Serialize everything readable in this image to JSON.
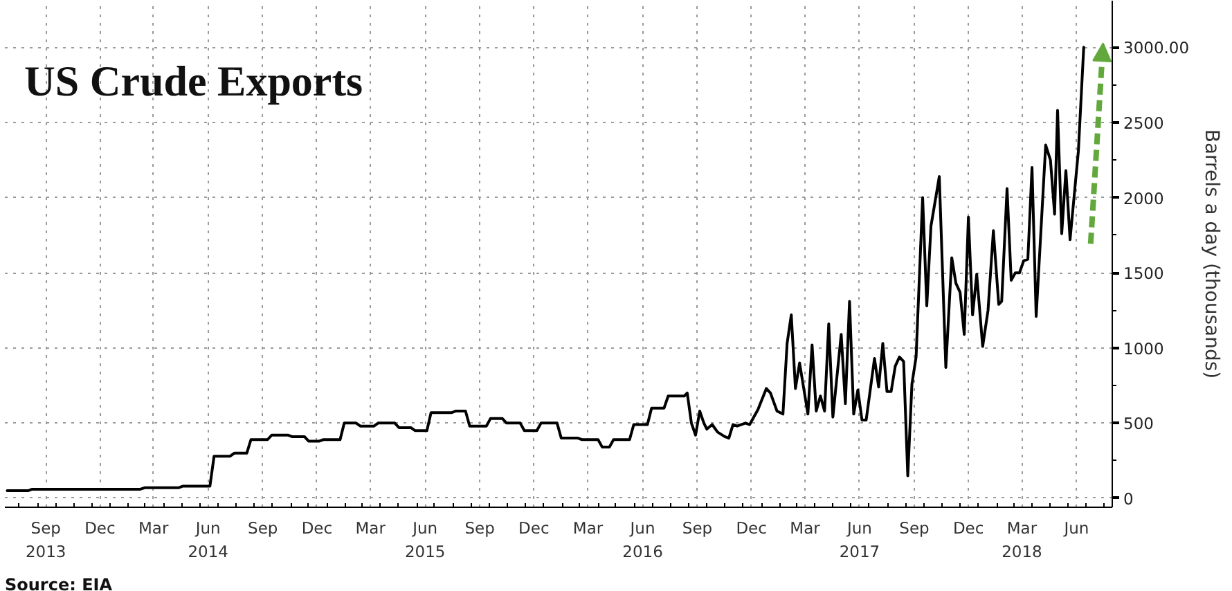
{
  "chart_data": {
    "type": "line",
    "title": "US Crude Exports",
    "ylabel": "Barrels a day (thousands)",
    "annotations": [
      "Source: EIA"
    ],
    "x": [
      "2013-07-12",
      "2013-08-16",
      "2013-08-23",
      "2014-02-21",
      "2014-02-28",
      "2014-04-26",
      "2014-05-03",
      "2014-06-18",
      "2014-06-25",
      "2014-07-22",
      "2014-07-29",
      "2014-08-19",
      "2014-08-26",
      "2014-09-23",
      "2014-09-30",
      "2014-10-27",
      "2014-11-03",
      "2014-11-24",
      "2014-12-01",
      "2014-12-19",
      "2014-12-26",
      "2015-01-23",
      "2015-01-30",
      "2015-02-19",
      "2015-02-26",
      "2015-03-21",
      "2015-03-28",
      "2015-04-25",
      "2015-05-02",
      "2015-05-22",
      "2015-05-29",
      "2015-06-18",
      "2015-06-25",
      "2015-07-30",
      "2015-08-06",
      "2015-08-22",
      "2015-08-29",
      "2015-09-26",
      "2015-10-03",
      "2015-10-23",
      "2015-10-30",
      "2015-11-22",
      "2015-11-29",
      "2015-12-20",
      "2015-12-27",
      "2016-01-23",
      "2016-01-30",
      "2016-02-27",
      "2016-03-05",
      "2016-04-01",
      "2016-04-08",
      "2016-04-20",
      "2016-04-27",
      "2016-05-24",
      "2016-05-31",
      "2016-06-23",
      "2016-06-30",
      "2016-07-21",
      "2016-07-28",
      "2016-08-24",
      "2016-08-29",
      "2016-09-05",
      "2016-09-12",
      "2016-09-19",
      "2016-09-26",
      "2016-10-01",
      "2016-10-10",
      "2016-10-19",
      "2016-10-31",
      "2016-11-07",
      "2016-11-14",
      "2016-11-21",
      "2016-12-05",
      "2016-12-12",
      "2016-12-26",
      "2017-01-09",
      "2017-01-16",
      "2017-01-27",
      "2017-02-06",
      "2017-02-13",
      "2017-02-20",
      "2017-02-27",
      "2017-03-06",
      "2017-03-20",
      "2017-03-27",
      "2017-04-03",
      "2017-04-10",
      "2017-04-17",
      "2017-04-24",
      "2017-05-01",
      "2017-05-15",
      "2017-05-22",
      "2017-05-29",
      "2017-06-05",
      "2017-06-12",
      "2017-06-19",
      "2017-06-26",
      "2017-07-10",
      "2017-07-17",
      "2017-07-24",
      "2017-07-31",
      "2017-08-07",
      "2017-08-14",
      "2017-08-21",
      "2017-08-28",
      "2017-09-04",
      "2017-09-11",
      "2017-09-18",
      "2017-09-29",
      "2017-10-06",
      "2017-10-13",
      "2017-10-27",
      "2017-11-07",
      "2017-11-17",
      "2017-11-24",
      "2017-12-01",
      "2017-12-08",
      "2017-12-15",
      "2017-12-22",
      "2017-12-29",
      "2018-01-08",
      "2018-01-17",
      "2018-01-26",
      "2018-02-04",
      "2018-02-09",
      "2018-02-18",
      "2018-02-25",
      "2018-03-04",
      "2018-03-11",
      "2018-03-18",
      "2018-03-25",
      "2018-04-01",
      "2018-04-08",
      "2018-04-24",
      "2018-05-02",
      "2018-05-09",
      "2018-05-14",
      "2018-05-21",
      "2018-05-28",
      "2018-06-04",
      "2018-06-18",
      "2018-06-27"
    ],
    "series": [
      {
        "color": "#000000",
        "values": [
          50,
          50,
          60,
          60,
          70,
          70,
          80,
          80,
          280,
          280,
          300,
          300,
          390,
          390,
          420,
          420,
          410,
          410,
          380,
          380,
          390,
          390,
          500,
          500,
          480,
          480,
          500,
          500,
          470,
          470,
          450,
          450,
          570,
          570,
          580,
          580,
          480,
          480,
          530,
          530,
          500,
          500,
          450,
          450,
          500,
          500,
          400,
          400,
          390,
          390,
          340,
          340,
          390,
          390,
          490,
          490,
          600,
          600,
          680,
          680,
          700,
          500,
          420,
          580,
          500,
          460,
          490,
          440,
          410,
          400,
          490,
          480,
          500,
          490,
          590,
          730,
          700,
          580,
          560,
          1030,
          1220,
          730,
          900,
          560,
          1020,
          580,
          680,
          580,
          1160,
          540,
          1090,
          630,
          1310,
          560,
          720,
          520,
          520,
          930,
          740,
          1030,
          710,
          710,
          880,
          940,
          910,
          150,
          760,
          940,
          2000,
          1280,
          1810,
          2140,
          870,
          1600,
          1430,
          1370,
          1090,
          1870,
          1220,
          1490,
          1010,
          1250,
          1780,
          1290,
          1310,
          2060,
          1450,
          1500,
          1500,
          1580,
          1590,
          2200,
          1210,
          2350,
          2250,
          1890,
          2580,
          1760,
          2180,
          1720,
          2310,
          3000
        ]
      }
    ],
    "xlim": [
      "2013-07-08",
      "2018-08-14"
    ],
    "xticks": [
      {
        "value": "2013-09-15",
        "label": "Sep\n2013"
      },
      {
        "value": "2013-12-15",
        "label": "Dec"
      },
      {
        "value": "2014-03-15",
        "label": "Mar"
      },
      {
        "value": "2014-06-15",
        "label": "Jun\n2014"
      },
      {
        "value": "2014-09-15",
        "label": "Sep"
      },
      {
        "value": "2014-12-15",
        "label": "Dec"
      },
      {
        "value": "2015-03-15",
        "label": "Mar"
      },
      {
        "value": "2015-06-15",
        "label": "Jun\n2015"
      },
      {
        "value": "2015-09-15",
        "label": "Sep"
      },
      {
        "value": "2015-12-15",
        "label": "Dec"
      },
      {
        "value": "2016-03-15",
        "label": "Mar"
      },
      {
        "value": "2016-06-15",
        "label": "Jun\n2016"
      },
      {
        "value": "2016-09-15",
        "label": "Sep"
      },
      {
        "value": "2016-12-15",
        "label": "Dec"
      },
      {
        "value": "2017-03-15",
        "label": "Mar"
      },
      {
        "value": "2017-06-15",
        "label": "Jun\n2017"
      },
      {
        "value": "2017-09-15",
        "label": "Sep"
      },
      {
        "value": "2017-12-15",
        "label": "Dec"
      },
      {
        "value": "2018-03-15",
        "label": "Mar\n2018"
      },
      {
        "value": "2018-06-15",
        "label": "Jun"
      }
    ],
    "ylim": [
      -60,
      3310
    ],
    "yticks": [
      0,
      500,
      1000,
      1500,
      2000,
      2500,
      {
        "value": 3000,
        "label": "3000.00"
      }
    ],
    "grid": true
  }
}
